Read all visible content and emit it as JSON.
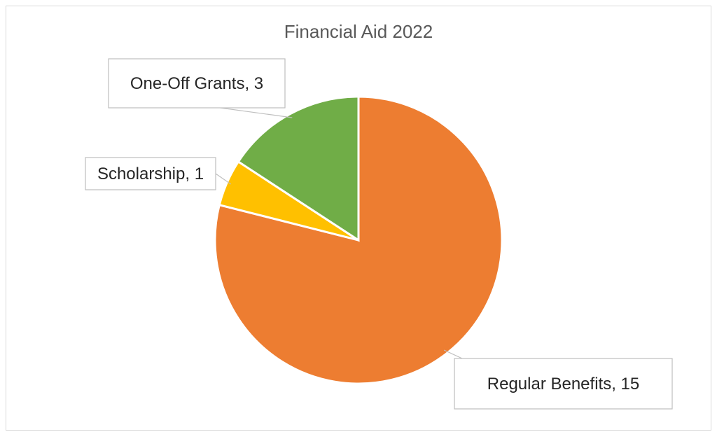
{
  "chart_data": {
    "type": "pie",
    "title": "Financial Aid 2022",
    "slices": [
      {
        "label": "Regular Benefits",
        "value": 15,
        "color": "#ED7D31",
        "data_label": "Regular Benefits, 15"
      },
      {
        "label": "Scholarship",
        "value": 1,
        "color": "#FFC000",
        "data_label": "Scholarship, 1"
      },
      {
        "label": "One-Off Grants",
        "value": 3,
        "color": "#70AD47",
        "data_label": "One-Off Grants, 3"
      }
    ],
    "start_angle_deg": 0,
    "direction": "clockwise",
    "legend": "none",
    "data_labels": "callouts"
  }
}
